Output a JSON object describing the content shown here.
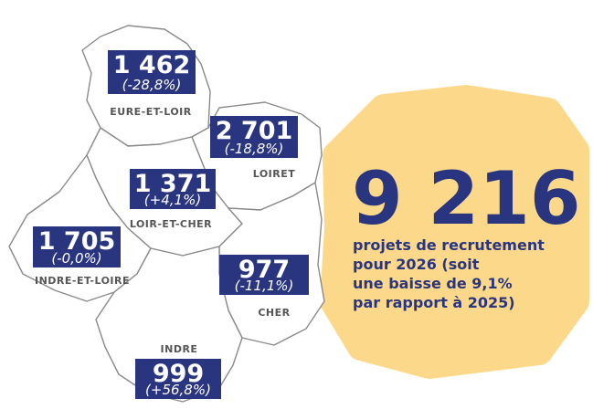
{
  "regions": [
    {
      "name": "EURE-ET-LOIR",
      "value": "1 462",
      "change": "(-28,8%)"
    },
    {
      "name": "LOIRET",
      "value": "2 701",
      "change": "(-18,8%)"
    },
    {
      "name": "LOIR-ET-CHER",
      "value": "1 371",
      "change": "(+4,1%)"
    },
    {
      "name": "INDRE-ET-LOIRE",
      "value": "1 705",
      "change": "(-0,0%)"
    },
    {
      "name": "CHER",
      "value": "977",
      "change": "(-11,1%)"
    },
    {
      "name": "INDRE",
      "value": "999",
      "change": "(+56,8%)"
    }
  ],
  "total": {
    "value": "9 216",
    "lines": [
      "projets de recrutement",
      "pour 2026 (soit",
      "une baisse de 9,1%",
      "par rapport à 2025)"
    ]
  }
}
